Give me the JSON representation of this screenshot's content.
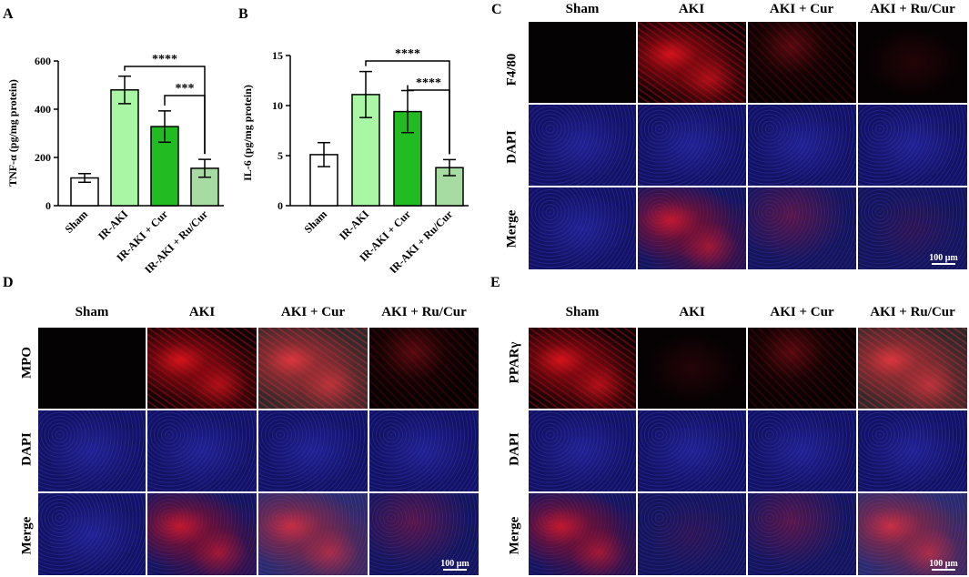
{
  "panel_letters": {
    "a": "A",
    "b": "B",
    "c": "C",
    "d": "D",
    "e": "E"
  },
  "chart_data": [
    {
      "type": "bar",
      "panel": "A",
      "ylabel": "TNF-α (pg/mg protein)",
      "xlabel": "",
      "ylim": [
        0,
        600
      ],
      "yticks": [
        0,
        200,
        400,
        600
      ],
      "categories": [
        "Sham",
        "IR-AKI",
        "IR-AKI + Cur",
        "IR-AKI + Ru/Cur"
      ],
      "values": [
        115,
        480,
        328,
        155
      ],
      "errors": [
        18,
        57,
        65,
        37
      ],
      "colors": [
        "#ffffff",
        "#a9f7a5",
        "#22bb22",
        "#a6dca2"
      ],
      "significance": [
        {
          "from": 1,
          "to": 3,
          "label": "****"
        },
        {
          "from": 2,
          "to": 3,
          "label": "***"
        }
      ]
    },
    {
      "type": "bar",
      "panel": "B",
      "ylabel": "IL-6 (pg/mg protein)",
      "xlabel": "",
      "ylim": [
        0,
        15
      ],
      "yticks": [
        0,
        5,
        10,
        15
      ],
      "categories": [
        "Sham",
        "IR-AKI",
        "IR-AKI + Cur",
        "IR-AKI + Ru/Cur"
      ],
      "values": [
        5.1,
        11.1,
        9.4,
        3.8
      ],
      "errors": [
        1.2,
        2.3,
        2.1,
        0.8
      ],
      "colors": [
        "#ffffff",
        "#a9f7a5",
        "#22bb22",
        "#a6dca2"
      ],
      "significance": [
        {
          "from": 1,
          "to": 3,
          "label": "****"
        },
        {
          "from": 2,
          "to": 3,
          "label": "****"
        }
      ]
    }
  ],
  "panel_c": {
    "columns": [
      "Sham",
      "AKI",
      "AKI + Cur",
      "AKI + Ru/Cur"
    ],
    "rows": [
      "F4/80",
      "DAPI",
      "Merge"
    ],
    "scale_bar": "100 μm"
  },
  "panel_d": {
    "columns": [
      "Sham",
      "AKI",
      "AKI + Cur",
      "AKI + Ru/Cur"
    ],
    "rows": [
      "MPO",
      "DAPI",
      "Merge"
    ],
    "scale_bar": "100 μm"
  },
  "panel_e": {
    "columns": [
      "Sham",
      "AKI",
      "AKI + Cur",
      "AKI + Ru/Cur"
    ],
    "rows": [
      "PPARγ",
      "DAPI",
      "Merge"
    ],
    "scale_bar": "100 μm"
  }
}
